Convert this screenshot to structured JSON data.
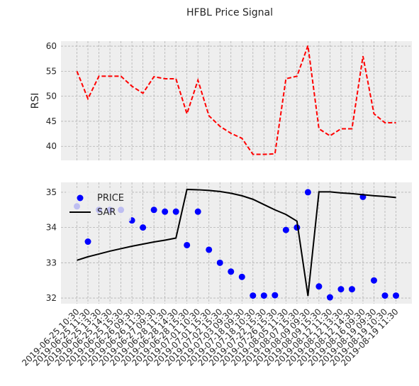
{
  "chart_data": [
    {
      "type": "line",
      "title": "HFBL Price Signal",
      "ylabel": "RSI",
      "ylim": [
        37.2,
        61.0
      ],
      "yticks": [
        40,
        45,
        50,
        55,
        60
      ],
      "grid": true,
      "series": [
        {
          "color": "#ff0000",
          "dash": true,
          "values": [
            55,
            49.5,
            54,
            54,
            54,
            52,
            50.6,
            53.9,
            53.5,
            53.5,
            46.5,
            53.2,
            46.1,
            44,
            42.6,
            41.6,
            38.4,
            38.4,
            38.5,
            53.5,
            54,
            60.1,
            43.5,
            42.1,
            43.5,
            43.5,
            58,
            46.5,
            44.7,
            44.7
          ]
        }
      ]
    },
    {
      "type": "combo",
      "ylim": [
        31.84,
        35.28
      ],
      "yticks": [
        32,
        33,
        34,
        35
      ],
      "grid": true,
      "legend": "upper left",
      "categories": [
        "2019-06-25 10:30",
        "2019-06-25 11:30",
        "2019-06-25 13:30",
        "2019-06-25 14:30",
        "2019-06-25 15:30",
        "2019-06-26 09:30",
        "2019-06-26 11:30",
        "2019-06-27 09:30",
        "2019-06-28 11:30",
        "2019-06-28 14:30",
        "2019-06-28 15:30",
        "2019-07-01 10:30",
        "2019-07-01 15:30",
        "2019-07-02 15:30",
        "2019-07-03 09:30",
        "2019-07-18 09:30",
        "2019-07-18 10:30",
        "2019-07-22 15:30",
        "2019-07-26 15:30",
        "2019-08-05 11:30",
        "2019-08-07 15:30",
        "2019-08-09 09:30",
        "2019-08-09 15:30",
        "2019-08-12 11:30",
        "2019-08-12 13:30",
        "2019-08-12 14:30",
        "2019-08-16 09:30",
        "2019-08-19 09:30",
        "2019-08-19 10:30",
        "2019-08-19 11:30"
      ],
      "series": [
        {
          "name": "PRICE",
          "type": "scatter",
          "color": "#0000ff",
          "values": [
            34.6,
            33.6,
            34.5,
            34.5,
            34.5,
            34.2,
            34.0,
            34.5,
            34.45,
            34.45,
            33.5,
            34.45,
            33.37,
            33.0,
            32.75,
            32.6,
            32.07,
            32.07,
            32.08,
            33.93,
            34.0,
            35.0,
            32.33,
            32.02,
            32.25,
            32.25,
            34.87,
            32.5,
            32.07,
            32.07
          ]
        },
        {
          "name": "SAR",
          "type": "line",
          "color": "#000000",
          "values": [
            33.07,
            33.17,
            33.25,
            33.33,
            33.4,
            33.47,
            33.53,
            33.59,
            33.64,
            33.7,
            35.08,
            35.07,
            35.05,
            35.02,
            34.97,
            34.9,
            34.8,
            34.65,
            34.5,
            34.37,
            34.18,
            32.06,
            35.01,
            35.01,
            34.98,
            34.96,
            34.93,
            34.9,
            34.88,
            34.85
          ]
        }
      ]
    }
  ]
}
